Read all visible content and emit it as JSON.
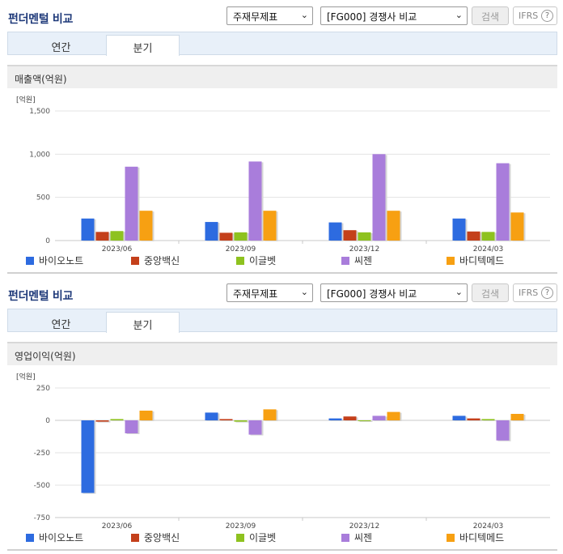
{
  "panels": [
    {
      "title": "펀더멘털 비교",
      "select1": "주재무제표",
      "select2": "[FG000] 경쟁사 비교",
      "search_label": "검색",
      "ifrs_label": "IFRS",
      "help_glyph": "?",
      "tabs": [
        "연간",
        "분기"
      ],
      "subhead": "매출액(억원)",
      "unit_label": "[억원]"
    },
    {
      "title": "펀더멘털 비교",
      "select1": "주재무제표",
      "select2": "[FG000] 경쟁사 비교",
      "search_label": "검색",
      "ifrs_label": "IFRS",
      "help_glyph": "?",
      "tabs": [
        "연간",
        "분기"
      ],
      "subhead": "영업이익(억원)",
      "unit_label": "[억원]"
    }
  ],
  "select_arrow": "⌄",
  "chart_data": [
    {
      "type": "bar",
      "title": "매출액(억원)",
      "ylabel": "[억원]",
      "categories": [
        "2023/06",
        "2023/09",
        "2023/12",
        "2024/03"
      ],
      "ylim": [
        0,
        1500
      ],
      "yticks": [
        0,
        500,
        1000,
        1500
      ],
      "ytick_labels": [
        "0",
        "500",
        "1,000",
        "1,500"
      ],
      "grid": true,
      "legend": "bottom",
      "series": [
        {
          "name": "바이오노트",
          "color": "#2d6be0",
          "values": [
            255,
            215,
            210,
            255
          ]
        },
        {
          "name": "중앙백신",
          "color": "#c4401b",
          "values": [
            100,
            90,
            120,
            105
          ]
        },
        {
          "name": "이글벳",
          "color": "#8ec21f",
          "values": [
            110,
            95,
            95,
            100
          ]
        },
        {
          "name": "씨젠",
          "color": "#a97ddb",
          "values": [
            855,
            915,
            1000,
            895
          ]
        },
        {
          "name": "바디텍메드",
          "color": "#f7a012",
          "values": [
            345,
            345,
            345,
            325
          ]
        }
      ]
    },
    {
      "type": "bar",
      "title": "영업이익(억원)",
      "ylabel": "[억원]",
      "categories": [
        "2023/06",
        "2023/09",
        "2023/12",
        "2024/03"
      ],
      "ylim": [
        -750,
        250
      ],
      "yticks": [
        -750,
        -500,
        -250,
        0,
        250
      ],
      "ytick_labels": [
        "-750",
        "-500",
        "-250",
        "0",
        "250"
      ],
      "grid": true,
      "legend": "bottom",
      "series": [
        {
          "name": "바이오노트",
          "color": "#2d6be0",
          "values": [
            -560,
            60,
            15,
            35
          ]
        },
        {
          "name": "중앙백신",
          "color": "#c4401b",
          "values": [
            -10,
            10,
            30,
            15
          ]
        },
        {
          "name": "이글벳",
          "color": "#8ec21f",
          "values": [
            10,
            -10,
            0,
            10
          ]
        },
        {
          "name": "씨젠",
          "color": "#a97ddb",
          "values": [
            -100,
            -110,
            35,
            -155
          ]
        },
        {
          "name": "바디텍메드",
          "color": "#f7a012",
          "values": [
            75,
            85,
            65,
            50
          ]
        }
      ]
    }
  ]
}
